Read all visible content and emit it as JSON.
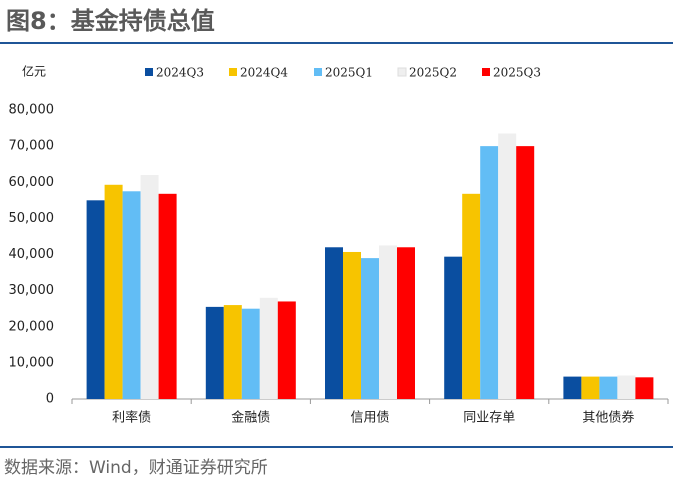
{
  "header": {
    "title": "图8：基金持债总值"
  },
  "chart_data": {
    "type": "bar",
    "y_label": "亿元",
    "categories": [
      "利率债",
      "金融债",
      "信用债",
      "同业存单",
      "其他债券"
    ],
    "series": [
      {
        "name": "2024Q3",
        "color": "#0a4ea0",
        "values": [
          55000,
          25500,
          42000,
          39400,
          6200
        ]
      },
      {
        "name": "2024Q4",
        "color": "#f7c400",
        "values": [
          59300,
          26000,
          40700,
          56800,
          6200
        ]
      },
      {
        "name": "2025Q1",
        "color": "#62bdf5",
        "values": [
          57500,
          25000,
          39000,
          70000,
          6200
        ]
      },
      {
        "name": "2025Q2",
        "color": "#efefef",
        "values": [
          62000,
          28000,
          42500,
          73500,
          6500
        ]
      },
      {
        "name": "2025Q3",
        "color": "#ff0000",
        "values": [
          56800,
          27000,
          42000,
          70000,
          6000
        ]
      }
    ],
    "ylim": [
      0,
      80000
    ],
    "yticks": [
      0,
      {
        "value": 10000,
        "label": "10,000"
      },
      {
        "value": 20000,
        "label": "20,000"
      },
      {
        "value": 30000,
        "label": "30,000"
      },
      {
        "value": 40000,
        "label": "40,000"
      },
      {
        "value": 50000,
        "label": "50,000"
      },
      {
        "value": 60000,
        "label": "60,000"
      },
      {
        "value": 70000,
        "label": "70,000"
      },
      {
        "value": 80000,
        "label": "80,000"
      }
    ],
    "grid": false
  },
  "footer": {
    "source": "数据来源：Wind，财通证券研究所"
  }
}
